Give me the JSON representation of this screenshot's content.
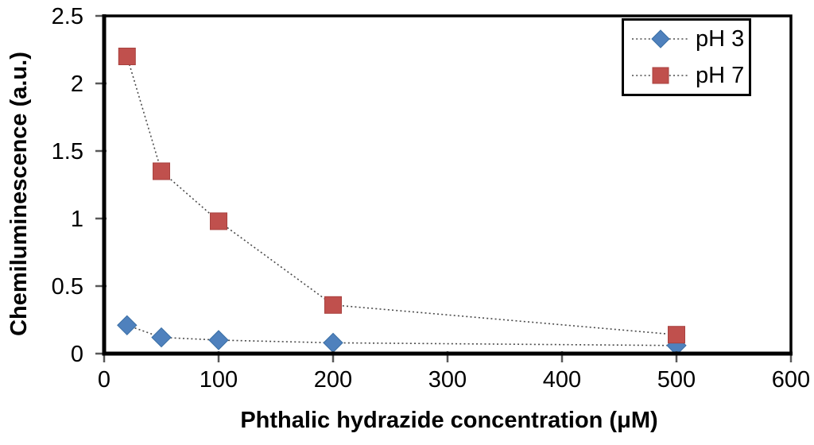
{
  "chart_data": {
    "type": "line",
    "title": "",
    "x": [
      20,
      50,
      100,
      200,
      500
    ],
    "series": [
      {
        "name": "pH 3",
        "marker": "diamond",
        "color": "#4F81BD",
        "edge_color": "#3A6FA5",
        "values": [
          0.21,
          0.12,
          0.1,
          0.08,
          0.06
        ]
      },
      {
        "name": "pH 7",
        "marker": "square",
        "color": "#C0504D",
        "edge_color": "#A8423F",
        "values": [
          2.2,
          1.35,
          0.98,
          0.36,
          0.14
        ]
      }
    ],
    "xlabel": "Phthalic hydrazide concentration (μM)",
    "ylabel": "Chemiluminescence (a.u.)",
    "xlim": [
      0,
      600
    ],
    "ylim": [
      0,
      2.5
    ],
    "xticks": [
      "0",
      "100",
      "200",
      "300",
      "400",
      "500",
      "600"
    ],
    "yticks": [
      "0",
      "0.5",
      "1",
      "1.5",
      "2",
      "2.5"
    ],
    "grid": false,
    "line_style": "dotted",
    "line_color": "#4a4a4a",
    "tick_color": "#595959",
    "frame_color": "#000000",
    "legend_position": "top-right"
  }
}
